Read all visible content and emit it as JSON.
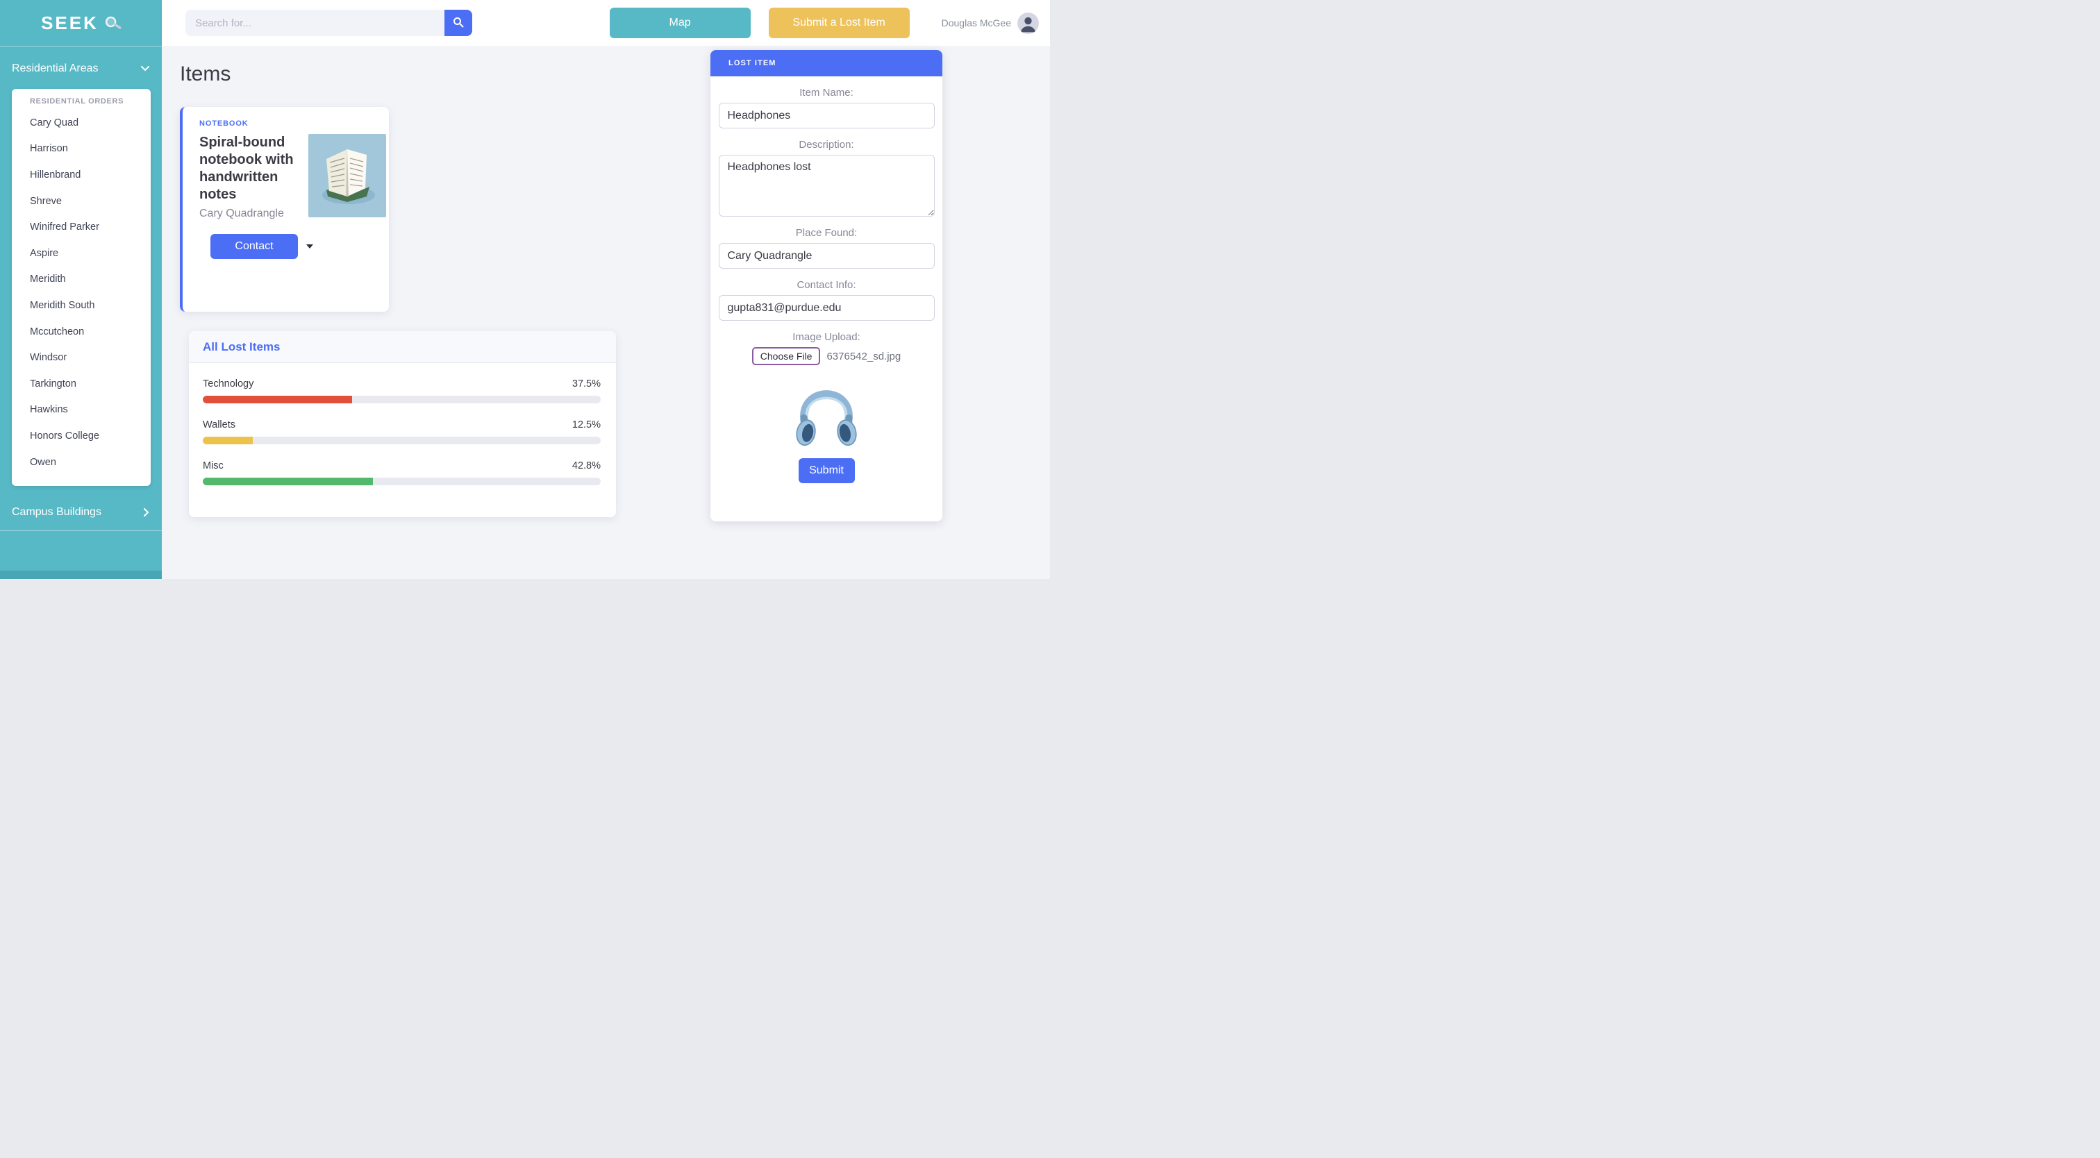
{
  "colors": {
    "primary_blue": "#4c6ef5",
    "teal": "#57b9c6",
    "yellow": "#eec25a",
    "bar_red": "#e2503c",
    "bar_yellow": "#edc24a",
    "bar_green": "#54b86d"
  },
  "sidebar": {
    "logo": "SEEK",
    "residential_section_label": "Residential Areas",
    "orders_header": "RESIDENTIAL ORDERS",
    "residential_items": [
      "Cary Quad",
      "Harrison",
      "Hillenbrand",
      "Shreve",
      "Winifred Parker",
      "Aspire",
      "Meridith",
      "Meridith South",
      "Mccutcheon",
      "Windsor",
      "Tarkington",
      "Hawkins",
      "Honors College",
      "Owen"
    ],
    "campus_section_label": "Campus Buildings"
  },
  "topbar": {
    "search_placeholder": "Search for...",
    "map_button": "Map",
    "submit_lost_item_button": "Submit a Lost Item",
    "user_name": "Douglas McGee"
  },
  "main": {
    "page_title": "Items",
    "item_card": {
      "category": "NOTEBOOK",
      "title": "Spiral-bound notebook with handwritten notes",
      "location": "Cary Quadrangle",
      "contact_button": "Contact"
    }
  },
  "chart_data": {
    "type": "bar",
    "title": "All Lost Items",
    "categories": [
      "Technology",
      "Wallets",
      "Misc"
    ],
    "values": [
      37.5,
      12.5,
      42.8
    ],
    "value_labels": [
      "37.5%",
      "12.5%",
      "42.8%"
    ],
    "colors": [
      "#e2503c",
      "#edc24a",
      "#54b86d"
    ],
    "xlim": [
      0,
      100
    ],
    "legend": "none",
    "grid": false
  },
  "lost_item_form": {
    "header": "LOST ITEM",
    "item_name_label": "Item Name:",
    "item_name_value": "Headphones",
    "description_label": "Description:",
    "description_value": "Headphones lost",
    "place_found_label": "Place Found:",
    "place_found_value": "Cary Quadrangle",
    "contact_info_label": "Contact Info:",
    "contact_info_value": "gupta831@purdue.edu",
    "image_upload_label": "Image Upload:",
    "choose_file_button": "Choose File",
    "file_name": "6376542_sd.jpg",
    "submit_button": "Submit"
  }
}
